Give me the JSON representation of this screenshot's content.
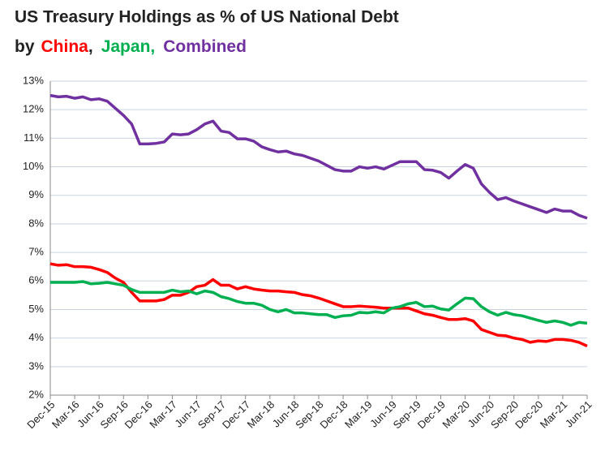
{
  "chart_data": {
    "type": "line",
    "title": "US Treasury Holdings as % of US National Debt",
    "subtitle": "by",
    "separator": ",",
    "categories": [
      "Dec-15",
      null,
      null,
      "Mar-16",
      null,
      null,
      "Jun-16",
      null,
      null,
      "Sep-16",
      null,
      null,
      "Dec-16",
      null,
      null,
      "Mar-17",
      null,
      null,
      "Jun-17",
      null,
      null,
      "Sep-17",
      null,
      null,
      "Dec-17",
      null,
      null,
      "Mar-18",
      null,
      null,
      "Jun-18",
      null,
      null,
      "Sep-18",
      null,
      null,
      "Dec-18",
      null,
      null,
      "Mar-19",
      null,
      null,
      "Jun-19",
      null,
      null,
      "Sep-19",
      null,
      null,
      "Dec-19",
      null,
      null,
      "Mar-20",
      null,
      null,
      "Jun-20",
      null,
      null,
      "Sep-20",
      null,
      null,
      "Dec-20",
      null,
      null,
      "Mar-21",
      null,
      null,
      "Jun-21"
    ],
    "series": [
      {
        "name": "China",
        "color": "#ff0000",
        "values": [
          6.6,
          6.55,
          6.57,
          6.5,
          6.5,
          6.48,
          6.4,
          6.3,
          6.1,
          5.95,
          5.6,
          5.3,
          5.3,
          5.3,
          5.35,
          5.5,
          5.5,
          5.6,
          5.8,
          5.85,
          6.05,
          5.85,
          5.85,
          5.72,
          5.8,
          5.72,
          5.68,
          5.65,
          5.65,
          5.62,
          5.6,
          5.52,
          5.48,
          5.4,
          5.3,
          5.2,
          5.1,
          5.1,
          5.12,
          5.1,
          5.08,
          5.05,
          5.05,
          5.05,
          5.05,
          4.95,
          4.85,
          4.8,
          4.72,
          4.65,
          4.65,
          4.68,
          4.6,
          4.3,
          4.2,
          4.1,
          4.08,
          4.0,
          3.95,
          3.85,
          3.9,
          3.88,
          3.95,
          3.95,
          3.92,
          3.85,
          3.72
        ]
      },
      {
        "name": "Japan",
        "color": "#00b050",
        "values": [
          5.95,
          5.95,
          5.95,
          5.95,
          5.98,
          5.9,
          5.92,
          5.95,
          5.9,
          5.85,
          5.7,
          5.6,
          5.6,
          5.6,
          5.6,
          5.68,
          5.62,
          5.65,
          5.55,
          5.65,
          5.6,
          5.45,
          5.38,
          5.28,
          5.22,
          5.22,
          5.15,
          5.0,
          4.92,
          5.0,
          4.88,
          4.88,
          4.85,
          4.82,
          4.82,
          4.72,
          4.78,
          4.8,
          4.9,
          4.88,
          4.92,
          4.88,
          5.05,
          5.1,
          5.2,
          5.25,
          5.1,
          5.12,
          5.02,
          4.98,
          5.2,
          5.4,
          5.38,
          5.1,
          4.92,
          4.8,
          4.9,
          4.82,
          4.78,
          4.7,
          4.62,
          4.55,
          4.6,
          4.55,
          4.45,
          4.55,
          4.52
        ]
      },
      {
        "name": "Combined",
        "color": "#7030a0",
        "values": [
          12.5,
          12.45,
          12.47,
          12.4,
          12.45,
          12.35,
          12.38,
          12.3,
          12.05,
          11.8,
          11.5,
          10.8,
          10.8,
          10.82,
          10.87,
          11.15,
          11.12,
          11.15,
          11.3,
          11.5,
          11.6,
          11.25,
          11.2,
          10.98,
          10.98,
          10.9,
          10.7,
          10.6,
          10.52,
          10.55,
          10.45,
          10.4,
          10.3,
          10.2,
          10.05,
          9.9,
          9.85,
          9.85,
          10.0,
          9.95,
          10.0,
          9.92,
          10.05,
          10.18,
          10.18,
          10.18,
          9.9,
          9.88,
          9.8,
          9.6,
          9.85,
          10.08,
          9.95,
          9.4,
          9.1,
          8.85,
          8.92,
          8.8,
          8.7,
          8.6,
          8.5,
          8.4,
          8.52,
          8.45,
          8.45,
          8.3,
          8.2
        ]
      }
    ],
    "ylim": [
      2,
      13
    ],
    "yticks": [
      {
        "value": 2,
        "label": "2%"
      },
      {
        "value": 3,
        "label": "3%"
      },
      {
        "value": 4,
        "label": "4%"
      },
      {
        "value": 5,
        "label": "5%"
      },
      {
        "value": 6,
        "label": "6%"
      },
      {
        "value": 7,
        "label": "7%"
      },
      {
        "value": 8,
        "label": "8%"
      },
      {
        "value": 9,
        "label": "9%"
      },
      {
        "value": 10,
        "label": "10%"
      },
      {
        "value": 11,
        "label": "11%"
      },
      {
        "value": 12,
        "label": "12%"
      },
      {
        "value": 13,
        "label": "13%"
      }
    ],
    "grid": true
  }
}
